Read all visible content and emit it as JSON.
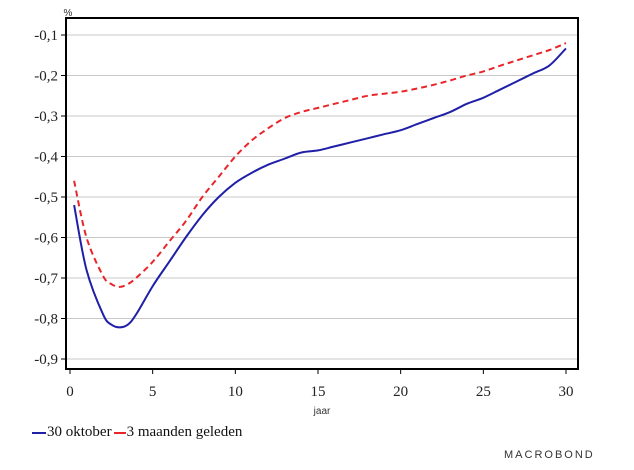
{
  "chart_data": {
    "type": "line",
    "unit": "%",
    "xlabel": "jaar",
    "ylabel": "",
    "xlim": [
      0,
      30
    ],
    "ylim": [
      -0.9,
      -0.1
    ],
    "xticks": [
      0,
      5,
      10,
      15,
      20,
      25,
      30
    ],
    "yticks": [
      -0.1,
      -0.2,
      -0.3,
      -0.4,
      -0.5,
      -0.6,
      -0.7,
      -0.8,
      -0.9
    ],
    "ytick_labels": [
      "-0,1",
      "-0,2",
      "-0,3",
      "-0,4",
      "-0,5",
      "-0,6",
      "-0,7",
      "-0,8",
      "-0,9"
    ],
    "xtick_labels": [
      "0",
      "5",
      "10",
      "15",
      "20",
      "25",
      "30"
    ],
    "grid": "horizontal",
    "legend_position": "bottom-left",
    "series": [
      {
        "name": "30 oktober",
        "color": "#1f1fa8",
        "style": "solid",
        "x": [
          0.25,
          1,
          2,
          2.5,
          3,
          3.5,
          4,
          5,
          6,
          7,
          8,
          9,
          10,
          11,
          12,
          13,
          14,
          15,
          16,
          17,
          18,
          19,
          20,
          21,
          22,
          23,
          24,
          25,
          26,
          27,
          28,
          29,
          30
        ],
        "y": [
          -0.52,
          -0.68,
          -0.79,
          -0.815,
          -0.822,
          -0.815,
          -0.79,
          -0.72,
          -0.66,
          -0.6,
          -0.545,
          -0.5,
          -0.465,
          -0.44,
          -0.42,
          -0.405,
          -0.39,
          -0.385,
          -0.375,
          -0.365,
          -0.355,
          -0.345,
          -0.335,
          -0.32,
          -0.305,
          -0.29,
          -0.27,
          -0.255,
          -0.235,
          -0.215,
          -0.195,
          -0.175,
          -0.133
        ]
      },
      {
        "name": "3 maanden geleden",
        "color": "#e8262a",
        "style": "dashed",
        "x": [
          0.25,
          1,
          2,
          2.5,
          3,
          3.5,
          4,
          5,
          6,
          7,
          8,
          9,
          10,
          11,
          12,
          13,
          14,
          15,
          16,
          17,
          18,
          19,
          20,
          21,
          22,
          23,
          24,
          25,
          26,
          27,
          28,
          29,
          30
        ],
        "y": [
          -0.46,
          -0.6,
          -0.695,
          -0.715,
          -0.722,
          -0.715,
          -0.7,
          -0.66,
          -0.61,
          -0.56,
          -0.5,
          -0.45,
          -0.4,
          -0.36,
          -0.33,
          -0.305,
          -0.29,
          -0.28,
          -0.27,
          -0.26,
          -0.25,
          -0.245,
          -0.24,
          -0.232,
          -0.223,
          -0.212,
          -0.2,
          -0.19,
          -0.176,
          -0.163,
          -0.15,
          -0.137,
          -0.12
        ]
      }
    ]
  },
  "legend": {
    "item1": "30 oktober",
    "item2": "3 maanden geleden"
  },
  "brand": {
    "logo_text": "MACROBOND"
  },
  "colors": {
    "series1": "#1f1fa8",
    "series2": "#e8262a",
    "grid": "#c8c8c8",
    "frame": "#000000"
  }
}
